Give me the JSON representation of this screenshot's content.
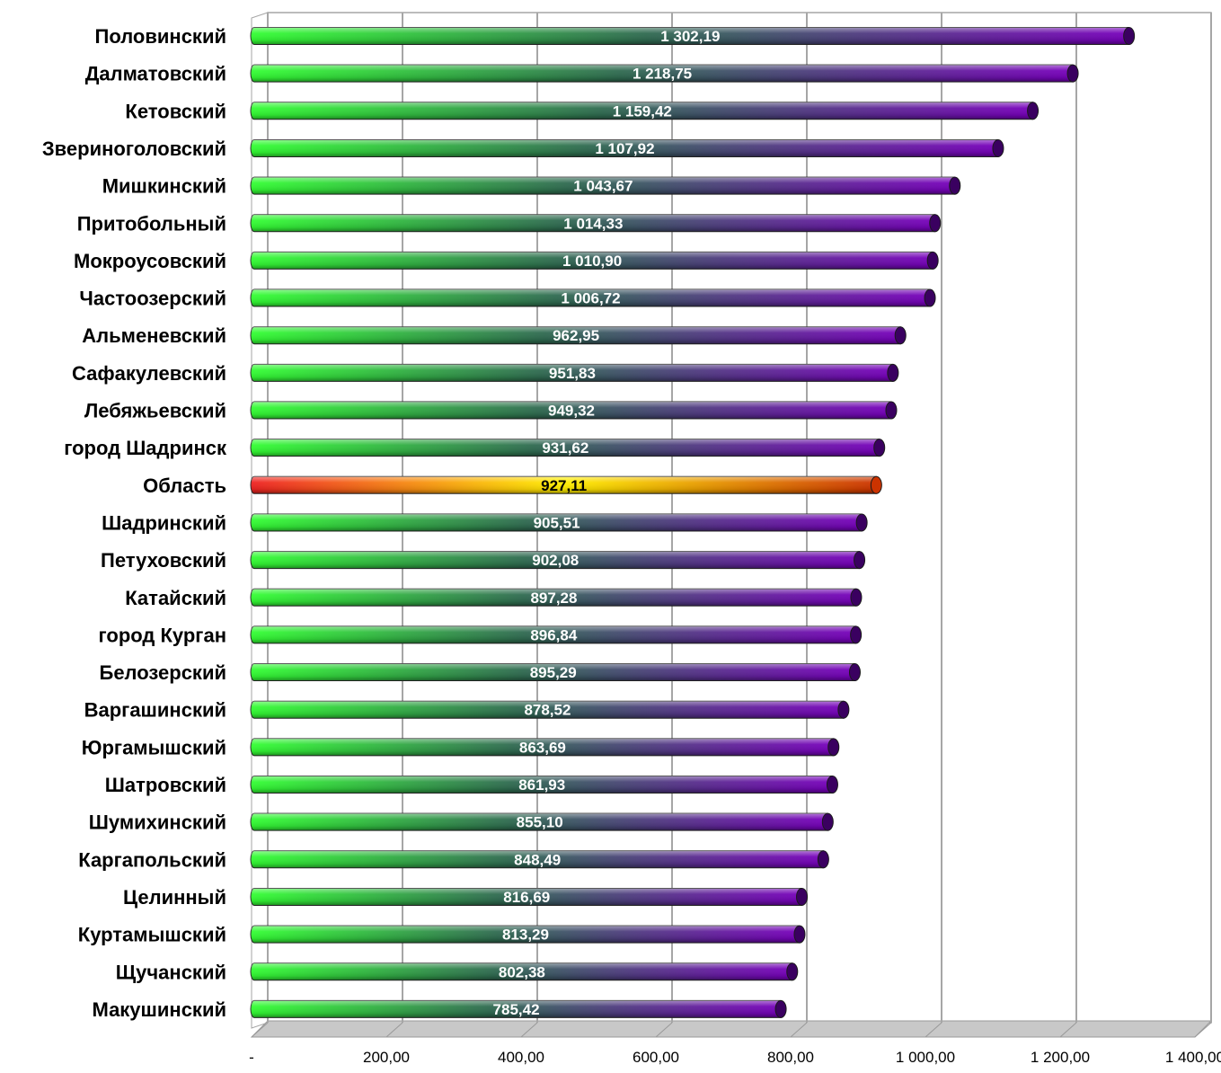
{
  "chart_data": {
    "type": "bar",
    "orientation": "horizontal",
    "title": "",
    "xlabel": "",
    "ylabel": "",
    "xlim": [
      0,
      1400
    ],
    "x_ticks": [
      0,
      200,
      400,
      600,
      800,
      1000,
      1200,
      1400
    ],
    "x_tick_labels": [
      "-",
      "200,00",
      "400,00",
      "600,00",
      "800,00",
      "1 000,00",
      "1 200,00",
      "1 400,00"
    ],
    "grid": "vertical",
    "legend": "none",
    "categories": [
      "Половинский",
      "Далматовский",
      "Кетовский",
      "Звериноголовский",
      "Мишкинский",
      "Притобольный",
      "Мокроусовский",
      "Частоозерский",
      "Альменевский",
      "Сафакулевский",
      "Лебяжьевский",
      "город Шадринск",
      "Область",
      "Шадринский",
      "Петуховский",
      "Катайский",
      "город Курган",
      "Белозерский",
      "Варгашинский",
      "Юргамышский",
      "Шатровский",
      "Шумихинский",
      "Каргапольский",
      "Целинный",
      "Куртамышский",
      "Щучанский",
      "Макушинский"
    ],
    "values": [
      1302.19,
      1218.75,
      1159.42,
      1107.92,
      1043.67,
      1014.33,
      1010.9,
      1006.72,
      962.95,
      951.83,
      949.32,
      931.62,
      927.11,
      905.51,
      902.08,
      897.28,
      896.84,
      895.29,
      878.52,
      863.69,
      861.93,
      855.1,
      848.49,
      816.69,
      813.29,
      802.38,
      785.42
    ],
    "value_labels": [
      "1 302,19",
      "1 218,75",
      "1 159,42",
      "1 107,92",
      "1 043,67",
      "1 014,33",
      "1 010,90",
      "1 006,72",
      "962,95",
      "951,83",
      "949,32",
      "931,62",
      "927,11",
      "905,51",
      "902,08",
      "897,28",
      "896,84",
      "895,29",
      "878,52",
      "863,69",
      "861,93",
      "855,10",
      "848,49",
      "816,69",
      "813,29",
      "802,38",
      "785,42"
    ],
    "highlight_category": "Область",
    "colors": {
      "bar_start": "#33ff33",
      "bar_mid": "#2f6a50",
      "bar_end": "#7700bb",
      "bar_cap": "#3a0060",
      "highlight_start": "#ee2222",
      "highlight_mid": "#ffee00",
      "highlight_end": "#cc3300",
      "gridline": "#a6a6a6",
      "floor": "#c8c8c8"
    }
  }
}
